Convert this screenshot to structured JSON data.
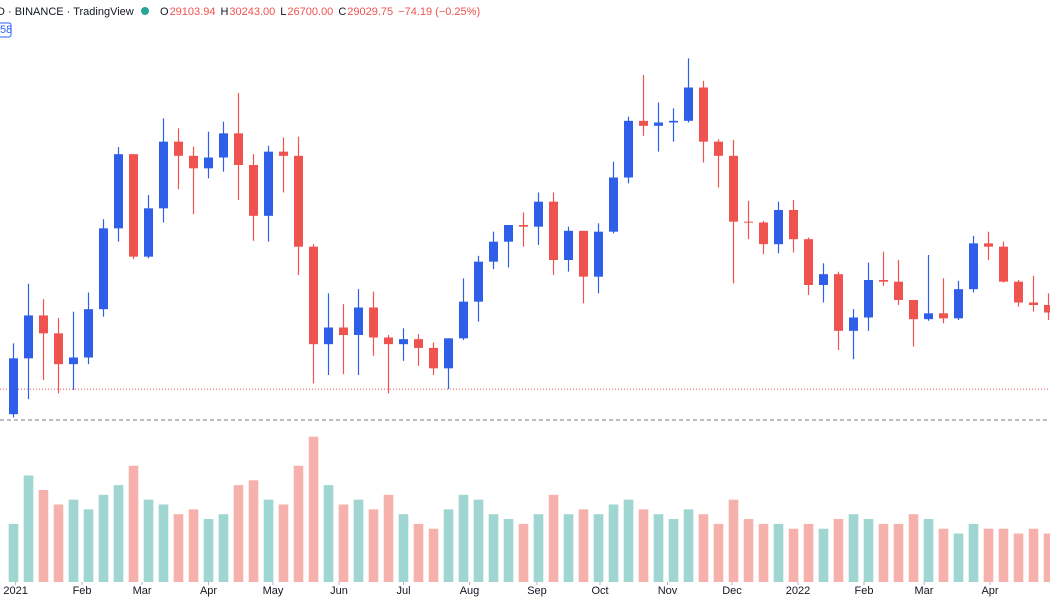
{
  "chart_data": {
    "type": "candlestick",
    "symbol_label": "D · BINANCE · TradingView",
    "badge": "58",
    "ohlc_header": [
      {
        "label": "O",
        "value": 29103.94
      },
      {
        "label": "H",
        "value": 30243.0
      },
      {
        "label": "L",
        "value": 26700.0
      },
      {
        "label": "C",
        "value": 29029.75
      }
    ],
    "change": "−74.19 (−0.25%)",
    "x": [
      0,
      1,
      2,
      3,
      4,
      5,
      6,
      7,
      8,
      9,
      10,
      11,
      12,
      13,
      14,
      15,
      16,
      17,
      18,
      19,
      20,
      21,
      22,
      23,
      24,
      25,
      26,
      27,
      28,
      29,
      30,
      31,
      32,
      33,
      34,
      35,
      36,
      37,
      38,
      39,
      40,
      41,
      42,
      43,
      44,
      45,
      46,
      47,
      48,
      49,
      50,
      51,
      52,
      53,
      54,
      55,
      56,
      57,
      58,
      59,
      60,
      61,
      62,
      63,
      64,
      65,
      66,
      67,
      68,
      69
    ],
    "open": [
      26300,
      33000,
      38150,
      36000,
      32300,
      33100,
      38900,
      48600,
      57500,
      45200,
      51000,
      59000,
      57300,
      55800,
      57100,
      60000,
      56200,
      50100,
      57800,
      57300,
      46400,
      34700,
      36700,
      35800,
      39100,
      35500,
      34700,
      35300,
      34250,
      31800,
      35400,
      39800,
      44600,
      47000,
      49000,
      48800,
      51800,
      44800,
      48300,
      42800,
      48200,
      54700,
      61500,
      60900,
      61300,
      61500,
      65500,
      59000,
      57300,
      49400,
      49300,
      46700,
      50800,
      47300,
      41800,
      43100,
      36300,
      37900,
      42400,
      42200,
      40000,
      37700,
      38400,
      37800,
      41300,
      46800,
      46400,
      42200,
      39700,
      39400
    ],
    "high": [
      34800,
      41950,
      40100,
      37850,
      38600,
      40900,
      49700,
      58350,
      57500,
      52600,
      61800,
      60600,
      58400,
      60200,
      61400,
      64850,
      57500,
      58500,
      59500,
      59600,
      46700,
      40800,
      39500,
      41300,
      41000,
      35800,
      36600,
      35900,
      34900,
      35400,
      42600,
      45300,
      48200,
      49000,
      50500,
      52900,
      52900,
      48800,
      48300,
      49200,
      56600,
      62000,
      67000,
      63700,
      63000,
      69000,
      66300,
      59300,
      59200,
      51900,
      49500,
      51800,
      52000,
      47500,
      44400,
      43400,
      38900,
      44500,
      45800,
      44800,
      40000,
      45400,
      42600,
      42300,
      47700,
      48200,
      47000,
      42400,
      42900,
      40800
    ],
    "low": [
      25900,
      28100,
      30400,
      28800,
      29200,
      32300,
      38000,
      47000,
      44900,
      45000,
      49300,
      53300,
      50300,
      54600,
      55400,
      52000,
      47100,
      47000,
      52900,
      43000,
      30000,
      31000,
      31100,
      31000,
      33300,
      28800,
      32700,
      32100,
      31000,
      29300,
      35200,
      37400,
      43700,
      43900,
      46400,
      46600,
      43000,
      43400,
      39600,
      40800,
      48000,
      54000,
      59700,
      57800,
      59000,
      61300,
      56500,
      53500,
      42000,
      47300,
      45500,
      45600,
      45700,
      40600,
      39700,
      34000,
      32900,
      36300,
      41700,
      39400,
      34400,
      37500,
      37200,
      37600,
      40900,
      44800,
      42100,
      39200,
      38600,
      37600
    ],
    "close": [
      33000,
      38150,
      36000,
      32300,
      33100,
      38900,
      48600,
      57500,
      45200,
      51000,
      59000,
      57300,
      55800,
      57100,
      60000,
      56200,
      50100,
      57800,
      57300,
      46400,
      34700,
      36700,
      35800,
      39100,
      35500,
      34700,
      35300,
      34250,
      31800,
      35400,
      39800,
      44600,
      47000,
      49000,
      48800,
      51800,
      44800,
      48300,
      42800,
      48200,
      54700,
      61500,
      60900,
      61300,
      61500,
      65500,
      59000,
      57300,
      49400,
      49300,
      46700,
      50800,
      47300,
      41800,
      43100,
      36300,
      37900,
      42400,
      42200,
      40000,
      37700,
      38400,
      37800,
      41300,
      46800,
      46400,
      42200,
      39700,
      39400,
      38500
    ],
    "volume": [
      60,
      110,
      95,
      80,
      85,
      75,
      90,
      100,
      120,
      85,
      80,
      70,
      75,
      65,
      70,
      100,
      105,
      85,
      80,
      120,
      150,
      100,
      80,
      85,
      75,
      90,
      70,
      60,
      55,
      75,
      90,
      85,
      70,
      65,
      60,
      70,
      90,
      70,
      75,
      70,
      80,
      85,
      75,
      70,
      65,
      75,
      70,
      60,
      85,
      65,
      60,
      60,
      55,
      60,
      55,
      65,
      70,
      65,
      60,
      60,
      70,
      65,
      55,
      50,
      60,
      55,
      55,
      50,
      55,
      50
    ],
    "xlim": [
      -0.9,
      69.1
    ],
    "ylim": [
      22000,
      76000
    ],
    "vlim": [
      0,
      160
    ],
    "xticks": [
      {
        "value": 0.14,
        "label": "2021"
      },
      {
        "value": 4.57,
        "label": "Feb"
      },
      {
        "value": 8.57,
        "label": "Mar"
      },
      {
        "value": 13,
        "label": "Apr"
      },
      {
        "value": 17.3,
        "label": "May"
      },
      {
        "value": 21.7,
        "label": "Jun"
      },
      {
        "value": 26,
        "label": "Jul"
      },
      {
        "value": 30.4,
        "label": "Aug"
      },
      {
        "value": 34.9,
        "label": "Sep"
      },
      {
        "value": 39.1,
        "label": "Oct"
      },
      {
        "value": 43.6,
        "label": "Nov"
      },
      {
        "value": 47.9,
        "label": "Dec"
      },
      {
        "value": 52.3,
        "label": "2022"
      },
      {
        "value": 56.7,
        "label": "Feb"
      },
      {
        "value": 60.7,
        "label": "Mar"
      },
      {
        "value": 65.1,
        "label": "Apr"
      }
    ],
    "dotted_line": 29300,
    "dashed_line": 25600,
    "up_color": "#2f5fe8",
    "down_color": "#ef5350",
    "volume_up_color": "#9fd6d1",
    "volume_down_color": "#f6b1ad"
  }
}
